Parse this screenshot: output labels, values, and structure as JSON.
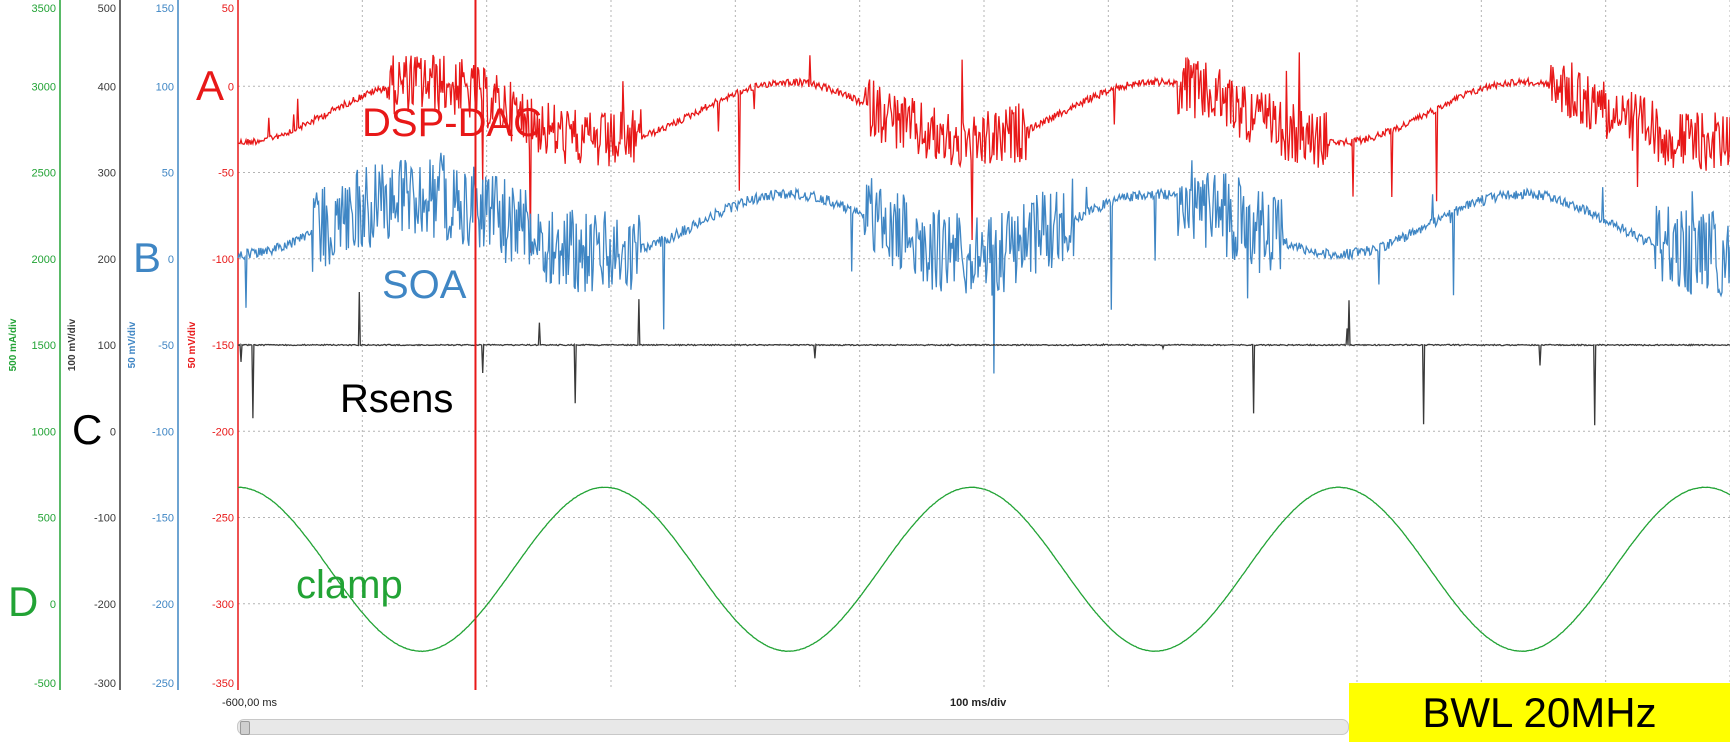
{
  "colors": {
    "chA": "#e81818",
    "chB": "#3f86c4",
    "chC": "#3a3a3a",
    "chD": "#22a335",
    "cursor": "#e81818",
    "grid": "#b4b4b4",
    "badge": "#ffff00"
  },
  "timebase": {
    "start_label": "-600,00 ms",
    "div_label": "100 ms/div"
  },
  "badge": {
    "label": "BWL 20MHz"
  },
  "chart_data": {
    "type": "line",
    "title": "",
    "x": {
      "unit": "ms",
      "start": -600,
      "per_div": 100,
      "divisions": 12
    },
    "grid": true,
    "axes": [
      {
        "channel": "D",
        "unit_label": "500 mA/div",
        "ticks": [
          "3500",
          "3000",
          "2500",
          "2000",
          "1500",
          "1000",
          "500",
          "0",
          "-500"
        ]
      },
      {
        "channel": "C",
        "unit_label": "100 mV/div",
        "ticks": [
          "500",
          "400",
          "300",
          "200",
          "100",
          "0",
          "-100",
          "-200",
          "-300"
        ]
      },
      {
        "channel": "B",
        "unit_label": "50 mV/div",
        "ticks": [
          "150",
          "100",
          "50",
          "0",
          "-50",
          "-100",
          "-150",
          "-200",
          "-250"
        ]
      },
      {
        "channel": "A",
        "unit_label": "50 mV/div",
        "ticks": [
          "50",
          "0",
          "-50",
          "-100",
          "-150",
          "-200",
          "-250",
          "-300",
          "-350"
        ]
      }
    ],
    "series": [
      {
        "name": "DSP-DAC",
        "channel": "A",
        "baseline_div": 1.3,
        "swing_div": 0.35,
        "period_ms": 295,
        "noise_div": 0.35,
        "bursts": [
          [
            0.1,
            0.27
          ],
          [
            0.42,
            0.53
          ],
          [
            0.63,
            0.73
          ],
          [
            0.88,
            1.0
          ]
        ]
      },
      {
        "name": "SOA",
        "channel": "B",
        "baseline_div": 2.6,
        "swing_div": 0.35,
        "period_ms": 295,
        "noise_div": 0.5,
        "bursts": [
          [
            0.05,
            0.27
          ],
          [
            0.42,
            0.56
          ],
          [
            0.63,
            0.7
          ],
          [
            0.95,
            1.0
          ]
        ]
      },
      {
        "name": "Rsens",
        "channel": "C",
        "baseline_div": 4.0,
        "swing_div": 0.0,
        "period_ms": 295,
        "noise_div": 0.06,
        "bursts": []
      },
      {
        "name": "clamp",
        "channel": "D",
        "baseline_div": 6.6,
        "swing_div": 0.95,
        "period_ms": 295,
        "noise_div": 0.02,
        "bursts": []
      }
    ],
    "channel_letters": [
      "A",
      "B",
      "C",
      "D"
    ],
    "cursor_ms": -409
  }
}
